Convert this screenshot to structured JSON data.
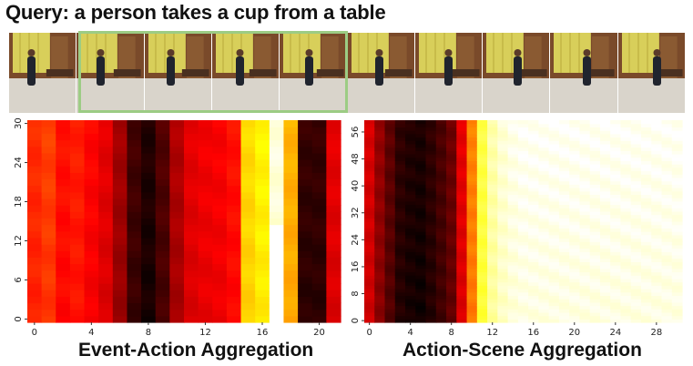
{
  "query": {
    "text": "Query: a person takes a cup from a table"
  },
  "filmstrip": {
    "frame_count": 10,
    "highlight_frames": [
      1,
      2,
      3,
      4
    ],
    "highlight_color": "#9ccc84",
    "palette": {
      "wall": "#7a4a2a",
      "curtain": "#d8cf5a",
      "floor": "#d9d4cb",
      "door": "#8a5a32",
      "person": "#20242e"
    }
  },
  "heatmaps": {
    "colormap": "hot",
    "left": {
      "xlabel": "Event-Action Aggregation",
      "x_ticks": [
        "0",
        "4",
        "8",
        "12",
        "16",
        "20"
      ],
      "y_ticks": [
        "0",
        "6",
        "12",
        "18",
        "24",
        "30"
      ],
      "columns": 22,
      "rows": 31,
      "column_intensity": [
        0.42,
        0.45,
        0.38,
        0.4,
        0.36,
        0.32,
        0.22,
        0.08,
        0.03,
        0.1,
        0.24,
        0.32,
        0.34,
        0.35,
        0.38,
        0.68,
        0.72,
        0.95,
        0.62,
        0.06,
        0.06,
        0.32
      ],
      "missing_cells": [
        [
          17,
          0,
          17,
          14
        ]
      ]
    },
    "right": {
      "xlabel": "Action-Scene Aggregation",
      "x_ticks": [
        "0",
        "4",
        "8",
        "12",
        "16",
        "20",
        "24",
        "28"
      ],
      "y_ticks": [
        "0",
        "8",
        "16",
        "24",
        "32",
        "40",
        "48",
        "56"
      ],
      "columns": 31,
      "rows": 60,
      "column_intensity": [
        0.3,
        0.2,
        0.12,
        0.05,
        0.03,
        0.02,
        0.05,
        0.09,
        0.14,
        0.32,
        0.55,
        0.8,
        0.9,
        0.94,
        0.96,
        0.97,
        0.97,
        0.97,
        0.97,
        0.97,
        0.97,
        0.97,
        0.97,
        0.97,
        0.97,
        0.97,
        0.97,
        0.97,
        0.97,
        0.97,
        0.97
      ]
    }
  }
}
